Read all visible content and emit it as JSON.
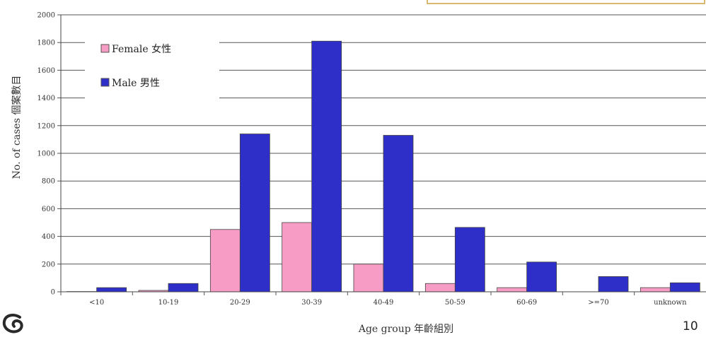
{
  "chart_data": {
    "type": "bar",
    "categories": [
      "<10",
      "10-19",
      "20-29",
      "30-39",
      "40-49",
      "50-59",
      "60-69",
      ">=70",
      "unknown"
    ],
    "series": [
      {
        "name": "Female 女性",
        "color": "#f79cc4",
        "values": [
          2,
          10,
          450,
          500,
          200,
          60,
          30,
          0,
          30
        ]
      },
      {
        "name": "Male 男性",
        "color": "#2e2ec8",
        "values": [
          30,
          60,
          1140,
          1810,
          1130,
          465,
          215,
          110,
          65
        ]
      }
    ],
    "ylim": [
      0,
      2000
    ],
    "yticks": [
      0,
      200,
      400,
      600,
      800,
      1000,
      1200,
      1400,
      1600,
      1800,
      2000
    ],
    "xlabel": "Age group 年齡組別",
    "ylabel": "No. of cases 個案數目",
    "grid": true,
    "legend_position": "top-left"
  },
  "page_number": "10",
  "logo_icon": "spiral-logo-icon"
}
